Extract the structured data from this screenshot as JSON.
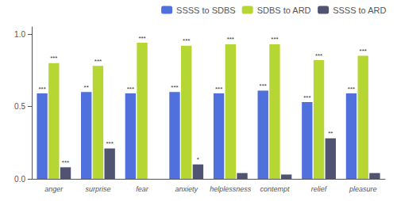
{
  "chart_data": {
    "type": "bar",
    "categories": [
      "anger",
      "surprise",
      "fear",
      "anxiety",
      "helplessness",
      "contempt",
      "relief",
      "pleasure"
    ],
    "series": [
      {
        "name": "SSSS to SDBS",
        "values": [
          0.59,
          0.6,
          0.59,
          0.6,
          0.59,
          0.61,
          0.53,
          0.59
        ],
        "annotations": [
          "***",
          "**",
          "***",
          "***",
          "***",
          "***",
          "***",
          "***"
        ]
      },
      {
        "name": "SDBS to ARD",
        "values": [
          0.8,
          0.78,
          0.94,
          0.92,
          0.93,
          0.93,
          0.82,
          0.85
        ],
        "annotations": [
          "***",
          "***",
          "***",
          "***",
          "***",
          "***",
          "***",
          "***"
        ]
      },
      {
        "name": "SSSS to ARD",
        "values": [
          0.08,
          0.21,
          0.0,
          0.1,
          0.04,
          0.03,
          0.28,
          0.04
        ],
        "annotations": [
          "***",
          "***",
          null,
          "*",
          null,
          null,
          "**",
          null
        ]
      }
    ],
    "ylim": [
      0.0,
      1.05
    ],
    "yticks": [
      {
        "value": 0.0,
        "label": "0.0"
      },
      {
        "value": 0.5,
        "label": "0.5"
      },
      {
        "value": 1.0,
        "label": "1.0"
      }
    ],
    "grid": false,
    "legend": "upper right"
  }
}
